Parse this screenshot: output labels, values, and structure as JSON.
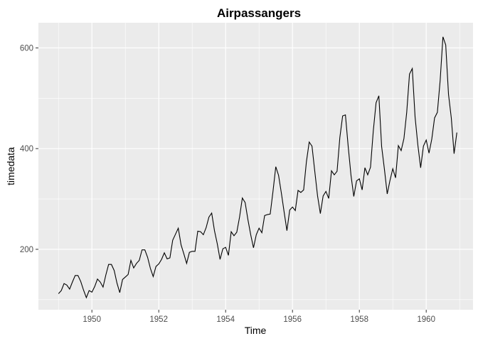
{
  "chart_data": {
    "type": "line",
    "title": "Airpassangers",
    "xlabel": "Time",
    "ylabel": "timedata",
    "xlim": [
      1948.4,
      1961.4
    ],
    "ylim": [
      80,
      650
    ],
    "xticks": [
      1950,
      1952,
      1954,
      1956,
      1958,
      1960
    ],
    "xtick_labels": [
      "1950",
      "1952",
      "1954",
      "1956",
      "1958",
      "1960"
    ],
    "yticks": [
      200,
      400,
      600
    ],
    "ytick_labels": [
      "200",
      "400",
      "600"
    ],
    "x_start": 1949,
    "x_step": 0.0833333,
    "grid": true,
    "colors": {
      "panel": "#ebebeb",
      "grid": "#ffffff",
      "line": "#000000",
      "tick": "#333333"
    },
    "series": [
      {
        "values": [
          112,
          118,
          132,
          129,
          121,
          135,
          148,
          148,
          136,
          119,
          104,
          118,
          115,
          126,
          141,
          135,
          125,
          149,
          170,
          170,
          158,
          133,
          114,
          140,
          145,
          150,
          178,
          163,
          172,
          178,
          199,
          199,
          184,
          162,
          146,
          166,
          171,
          180,
          193,
          181,
          183,
          218,
          230,
          242,
          209,
          191,
          172,
          194,
          196,
          196,
          236,
          235,
          229,
          243,
          264,
          272,
          237,
          211,
          180,
          201,
          204,
          188,
          235,
          227,
          234,
          264,
          302,
          293,
          259,
          229,
          203,
          229,
          242,
          233,
          267,
          269,
          270,
          315,
          364,
          347,
          312,
          274,
          237,
          278,
          284,
          277,
          317,
          313,
          318,
          374,
          413,
          405,
          355,
          306,
          271,
          306,
          315,
          301,
          356,
          348,
          355,
          422,
          465,
          467,
          404,
          347,
          305,
          336,
          340,
          318,
          362,
          348,
          363,
          435,
          491,
          505,
          404,
          359,
          310,
          337,
          360,
          342,
          406,
          396,
          420,
          472,
          548,
          559,
          463,
          407,
          362,
          405,
          417,
          391,
          419,
          461,
          472,
          535,
          622,
          606,
          508,
          461,
          390,
          432
        ]
      }
    ]
  }
}
